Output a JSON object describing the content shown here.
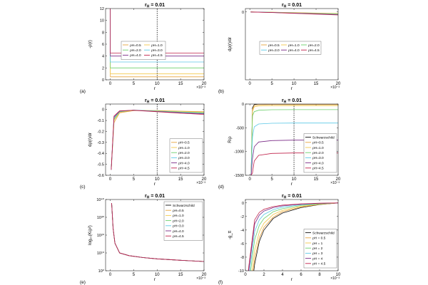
{
  "colors": [
    "#e8a33c",
    "#f2c94c",
    "#6bd06b",
    "#5bc8e6",
    "#7a2a86",
    "#c0214a"
  ],
  "chart_data": [
    {
      "label": "(a)",
      "type": "line",
      "title": "r_H = 0.01",
      "xlabel": "r",
      "ylabel": "-ρ(r)",
      "xlim": [
        -1,
        20
      ],
      "ylim": [
        0,
        12
      ],
      "xscale_note": "×10⁻³",
      "xticks": [
        0,
        5,
        10,
        15,
        20
      ],
      "yticks": [
        0,
        2,
        4,
        6,
        8,
        10,
        12
      ],
      "vline": 10,
      "legend": "bottom-center-2col",
      "series": [
        {
          "name": "ρH=0.5",
          "x": [
            0,
            20
          ],
          "y": [
            0.5,
            0.5
          ]
        },
        {
          "name": "ρH=1.0",
          "x": [
            0,
            20
          ],
          "y": [
            1.0,
            1.0
          ]
        },
        {
          "name": "ρH=2.0",
          "x": [
            0,
            20
          ],
          "y": [
            2.0,
            2.0
          ]
        },
        {
          "name": "ρH=3.0",
          "x": [
            0,
            20
          ],
          "y": [
            3.0,
            3.0
          ]
        },
        {
          "name": "ρH=4.0",
          "x": [
            0,
            20
          ],
          "y": [
            4.0,
            4.0
          ]
        },
        {
          "name": "ρH=4.5",
          "x": [
            0,
            20
          ],
          "y": [
            4.5,
            4.5
          ]
        }
      ]
    },
    {
      "label": "(b)",
      "type": "line",
      "title": "r_H = 0.01",
      "xlabel": "r",
      "ylabel": "dρ(r)/dr",
      "xlim": [
        -1,
        20
      ],
      "ylim": [
        -1,
        0.05
      ],
      "xscale_note": "×10⁻³",
      "xticks": [
        0,
        5,
        10,
        15,
        20
      ],
      "yticks": [
        0
      ],
      "legend": "bottom-center-3col",
      "series": [
        {
          "name": "ρH=0.5",
          "x": [
            0.2,
            5,
            10,
            15,
            20
          ],
          "y": [
            0,
            -0.004,
            -0.01,
            -0.016,
            -0.022
          ]
        },
        {
          "name": "ρH=1.0",
          "x": [
            0.2,
            5,
            10,
            15,
            20
          ],
          "y": [
            0,
            -0.005,
            -0.012,
            -0.019,
            -0.026
          ]
        },
        {
          "name": "ρH=2.0",
          "x": [
            0.2,
            5,
            10,
            15,
            20
          ],
          "y": [
            0,
            -0.006,
            -0.014,
            -0.022,
            -0.031
          ]
        },
        {
          "name": "ρH=3.0",
          "x": [
            0.2,
            5,
            10,
            15,
            20
          ],
          "y": [
            0,
            -0.007,
            -0.016,
            -0.025,
            -0.035
          ]
        },
        {
          "name": "ρH=4.0",
          "x": [
            0.2,
            5,
            10,
            15,
            20
          ],
          "y": [
            0,
            -0.008,
            -0.018,
            -0.029,
            -0.04
          ]
        },
        {
          "name": "ρH=4.5",
          "x": [
            0.2,
            5,
            10,
            15,
            20
          ],
          "y": [
            0,
            -0.009,
            -0.02,
            -0.032,
            -0.045
          ]
        }
      ]
    },
    {
      "label": "(c)",
      "type": "line",
      "title": "r_H = 0.01",
      "xlabel": "r",
      "ylabel": "dρ(r)/dr",
      "xlim": [
        -1,
        20
      ],
      "ylim": [
        -0.6,
        0.05
      ],
      "xscale_note": "×10⁻³",
      "xticks": [
        0,
        5,
        10,
        15,
        20
      ],
      "yticks": [
        0,
        -0.1,
        -0.2,
        -0.3,
        -0.4,
        -0.5,
        -0.6
      ],
      "vline": 10,
      "legend": "right",
      "series": [
        {
          "name": "ρH=0.5",
          "x": [
            0.2,
            0.8,
            2,
            5,
            10,
            15,
            20
          ],
          "y": [
            -0.55,
            -0.12,
            -0.03,
            -0.01,
            -0.01,
            -0.015,
            -0.02
          ]
        },
        {
          "name": "ρH=1.0",
          "x": [
            0.2,
            0.8,
            2,
            5,
            10,
            15,
            20
          ],
          "y": [
            -0.55,
            -0.1,
            -0.025,
            -0.008,
            -0.012,
            -0.018,
            -0.025
          ]
        },
        {
          "name": "ρH=2.0",
          "x": [
            0.2,
            0.8,
            2,
            5,
            10,
            15,
            20
          ],
          "y": [
            -0.55,
            -0.09,
            -0.02,
            -0.006,
            -0.014,
            -0.022,
            -0.03
          ]
        },
        {
          "name": "ρH=3.0",
          "x": [
            0.2,
            0.8,
            2,
            5,
            10,
            15,
            20
          ],
          "y": [
            -0.55,
            -0.08,
            -0.018,
            -0.005,
            -0.016,
            -0.026,
            -0.035
          ]
        },
        {
          "name": "ρH=4.0",
          "x": [
            0.2,
            0.8,
            2,
            5,
            10,
            15,
            20
          ],
          "y": [
            -0.55,
            -0.07,
            -0.015,
            -0.006,
            -0.018,
            -0.03,
            -0.04
          ]
        },
        {
          "name": "ρH=4.5",
          "x": [
            0.2,
            0.8,
            2,
            5,
            10,
            15,
            20
          ],
          "y": [
            -0.55,
            -0.06,
            -0.012,
            -0.007,
            -0.02,
            -0.033,
            -0.045
          ]
        }
      ]
    },
    {
      "label": "(d)",
      "type": "line",
      "title": "r_H = 0.01",
      "xlabel": "r",
      "ylabel": "R/ρ",
      "xlim": [
        -1,
        20
      ],
      "ylim": [
        -1500,
        0
      ],
      "xscale_note": "×10⁻³",
      "xticks": [
        0,
        5,
        10,
        15,
        20
      ],
      "yticks": [
        0,
        -500,
        -1000,
        -1500
      ],
      "vline": 10,
      "legend": "right",
      "series": [
        {
          "name": "Schwarzschild",
          "x": [
            0.3,
            0.6,
            1,
            2,
            5,
            10,
            20
          ],
          "y": [
            -1500,
            -80,
            -10,
            0,
            0,
            0,
            0
          ]
        },
        {
          "name": "ρH=0.5",
          "x": [
            0.3,
            0.6,
            1,
            2,
            5,
            10,
            20
          ],
          "y": [
            -1500,
            -120,
            -30,
            -15,
            -12,
            -12,
            -12
          ]
        },
        {
          "name": "ρH=1.0",
          "x": [
            0.3,
            0.6,
            1,
            2,
            5,
            10,
            20
          ],
          "y": [
            -1500,
            -160,
            -60,
            -40,
            -36,
            -35,
            -35
          ]
        },
        {
          "name": "ρH=2.0",
          "x": [
            0.3,
            0.6,
            1,
            2,
            5,
            10,
            20
          ],
          "y": [
            -1500,
            -250,
            -160,
            -130,
            -120,
            -118,
            -118
          ]
        },
        {
          "name": "ρH=3.0",
          "x": [
            0.3,
            0.6,
            1,
            2,
            5,
            10,
            20
          ],
          "y": [
            -1500,
            -700,
            -480,
            -420,
            -405,
            -400,
            -400
          ]
        },
        {
          "name": "ρH=4.0",
          "x": [
            0.3,
            0.6,
            1,
            2,
            5,
            10,
            20
          ],
          "y": [
            -1500,
            -1150,
            -900,
            -800,
            -770,
            -760,
            -760
          ]
        },
        {
          "name": "ρH=4.5",
          "x": [
            0.3,
            0.6,
            1,
            2,
            5,
            10,
            20
          ],
          "y": [
            -1500,
            -1450,
            -1200,
            -1080,
            -1040,
            -1030,
            -1030
          ]
        }
      ]
    },
    {
      "label": "(e)",
      "type": "line",
      "title": "r_H = 0.01",
      "xlabel": "r",
      "ylabel": "log₁₀(K/ρ²)",
      "xlim": [
        -1,
        20
      ],
      "ylim": [
        0,
        40
      ],
      "xscale_note": "×10⁻³",
      "xticks": [
        0,
        5,
        10,
        15,
        20
      ],
      "yticks": [
        0,
        10,
        20,
        30,
        40
      ],
      "ytick_labels": [
        "10⁰",
        "10¹⁰",
        "10²⁰",
        "10³⁰",
        "10⁴⁰"
      ],
      "legend": "top-right",
      "series": [
        {
          "name": "Schwarzschild",
          "x": [
            0.3,
            0.6,
            1,
            2,
            4,
            7,
            10,
            15,
            20
          ],
          "y": [
            38,
            24,
            15.5,
            10,
            8.5,
            7.4,
            6.7,
            5.9,
            5.2
          ]
        },
        {
          "name": "ρH=0.5",
          "x": [
            0.3,
            0.6,
            1,
            2,
            4,
            7,
            10,
            15,
            20
          ],
          "y": [
            38,
            24,
            15.5,
            10,
            8.5,
            7.4,
            6.7,
            5.9,
            5.2
          ]
        },
        {
          "name": "ρH=1.0",
          "x": [
            0.3,
            0.6,
            1,
            2,
            4,
            7,
            10,
            15,
            20
          ],
          "y": [
            38,
            24,
            15.5,
            10,
            8.5,
            7.4,
            6.7,
            5.9,
            5.2
          ]
        },
        {
          "name": "ρH=2.0",
          "x": [
            0.3,
            0.6,
            1,
            2,
            4,
            7,
            10,
            15,
            20
          ],
          "y": [
            38,
            24,
            15.5,
            10,
            8.5,
            7.4,
            6.7,
            5.9,
            5.2
          ]
        },
        {
          "name": "ρH=3.0",
          "x": [
            0.3,
            0.6,
            1,
            2,
            4,
            7,
            10,
            15,
            20
          ],
          "y": [
            38,
            24,
            15.5,
            10,
            8.5,
            7.4,
            6.7,
            5.9,
            5.2
          ]
        },
        {
          "name": "ρH=4.0",
          "x": [
            0.3,
            0.6,
            1,
            2,
            4,
            7,
            10,
            15,
            20
          ],
          "y": [
            38,
            24,
            15.5,
            10,
            8.5,
            7.4,
            6.7,
            5.9,
            5.2
          ]
        },
        {
          "name": "ρH=4.5",
          "x": [
            0.3,
            0.6,
            1,
            2,
            4,
            7,
            10,
            15,
            20
          ],
          "y": [
            38,
            24,
            15.5,
            10,
            8.5,
            7.4,
            6.7,
            5.9,
            5.2
          ]
        }
      ]
    },
    {
      "label": "(f)",
      "type": "line",
      "title": "r_H = 0.01",
      "xlabel": "r",
      "ylabel": "-g_tt",
      "xlim": [
        0,
        10
      ],
      "ylim": [
        -10,
        0.5
      ],
      "xscale_note": "×10⁻³",
      "xticks": [
        0,
        2,
        4,
        6,
        8,
        10
      ],
      "yticks": [
        0,
        -2,
        -4,
        -6,
        -8,
        -10
      ],
      "legend": "right",
      "series": [
        {
          "name": "Schwarzschild",
          "x": [
            0.91,
            1,
            1.5,
            2,
            3,
            4,
            6,
            8,
            10
          ],
          "y": [
            -10,
            -9,
            -5.7,
            -4,
            -2.3,
            -1.5,
            -0.7,
            -0.25,
            0
          ]
        },
        {
          "name": "ρH = 0.5",
          "x": [
            0.83,
            1,
            1.5,
            2,
            3,
            4,
            6,
            8,
            10
          ],
          "y": [
            -10,
            -8.2,
            -5.2,
            -3.6,
            -2.1,
            -1.3,
            -0.6,
            -0.22,
            0
          ]
        },
        {
          "name": "ρH = 1",
          "x": [
            0.71,
            1,
            1.5,
            2,
            3,
            4,
            6,
            8,
            10
          ],
          "y": [
            -10,
            -7,
            -4.3,
            -3,
            -1.7,
            -1.1,
            -0.5,
            -0.18,
            0
          ]
        },
        {
          "name": "ρH = 2",
          "x": [
            0.56,
            1,
            1.5,
            2,
            3,
            4,
            6,
            8,
            10
          ],
          "y": [
            -10,
            -5.4,
            -3.3,
            -2.3,
            -1.3,
            -0.85,
            -0.38,
            -0.14,
            0
          ]
        },
        {
          "name": "ρH = 3",
          "x": [
            0.45,
            1,
            1.5,
            2,
            3,
            4,
            6,
            8,
            10
          ],
          "y": [
            -10,
            -4.2,
            -2.5,
            -1.7,
            -1,
            -0.62,
            -0.28,
            -0.1,
            0
          ]
        },
        {
          "name": "ρH = 4",
          "x": [
            0.36,
            1,
            1.5,
            2,
            3,
            4,
            6,
            8,
            10
          ],
          "y": [
            -10,
            -3.1,
            -1.8,
            -1.2,
            -0.7,
            -0.43,
            -0.19,
            -0.07,
            0
          ]
        },
        {
          "name": "ρH = 4.5",
          "x": [
            0.31,
            1,
            1.5,
            2,
            3,
            4,
            6,
            8,
            10
          ],
          "y": [
            -10,
            -2.5,
            -1.4,
            -0.95,
            -0.55,
            -0.33,
            -0.14,
            -0.05,
            0
          ]
        }
      ]
    }
  ]
}
